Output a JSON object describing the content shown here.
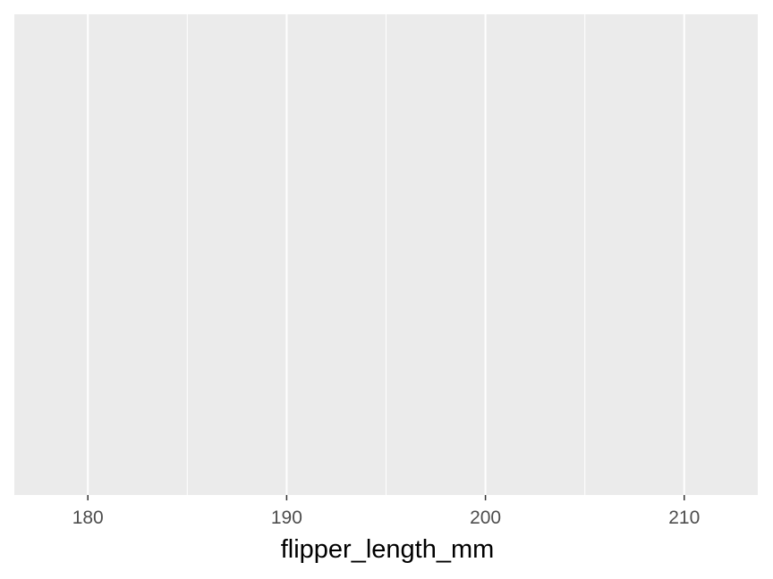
{
  "chart_data": {
    "type": "scatter",
    "title": "",
    "xlabel": "flipper_length_mm",
    "ylabel": "",
    "xlim": [
      176.3,
      213.7
    ],
    "x_major_ticks": [
      180,
      190,
      200,
      210
    ],
    "x_tick_labels": [
      "180",
      "190",
      "200",
      "210"
    ],
    "x_minor_ticks": [
      185,
      195,
      205
    ],
    "y_ticks": [],
    "series": [],
    "grid": true,
    "legend": "none",
    "colors": {
      "panel_background": "#ebebeb",
      "grid_major": "#ffffff",
      "grid_minor": "#ffffff",
      "tick_label": "#4d4d4d",
      "tick_mark": "#333333",
      "axis_title": "#000000"
    }
  }
}
